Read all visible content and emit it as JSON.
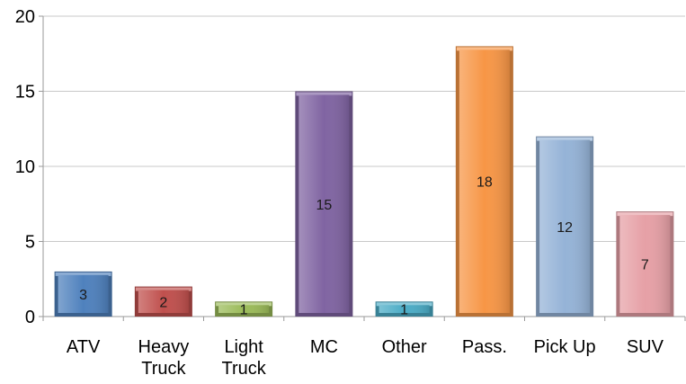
{
  "chart_data": {
    "type": "bar",
    "categories": [
      "ATV",
      "Heavy Truck",
      "Light Truck",
      "MC",
      "Other",
      "Pass.",
      "Pick Up",
      "SUV"
    ],
    "category_lines": [
      [
        "ATV"
      ],
      [
        "Heavy",
        "Truck"
      ],
      [
        "Light",
        "Truck"
      ],
      [
        "MC"
      ],
      [
        "Other"
      ],
      [
        "Pass."
      ],
      [
        "Pick Up"
      ],
      [
        "SUV"
      ]
    ],
    "values": [
      3,
      2,
      1,
      15,
      1,
      18,
      12,
      7
    ],
    "data_labels": [
      "3",
      "2",
      "1",
      "15",
      "1",
      "18",
      "12",
      "7"
    ],
    "colors": [
      "#4F81BD",
      "#C0504D",
      "#9BBB59",
      "#8064A2",
      "#4BACC6",
      "#F79646",
      "#95B3D7",
      "#E6A0A6"
    ],
    "ylim": [
      0,
      20
    ],
    "yticks": [
      0,
      5,
      10,
      15,
      20
    ],
    "ytick_labels": [
      "0",
      "5",
      "10",
      "15",
      "20"
    ],
    "grid": true,
    "legend": "none",
    "title": "",
    "xlabel": "",
    "ylabel": ""
  }
}
